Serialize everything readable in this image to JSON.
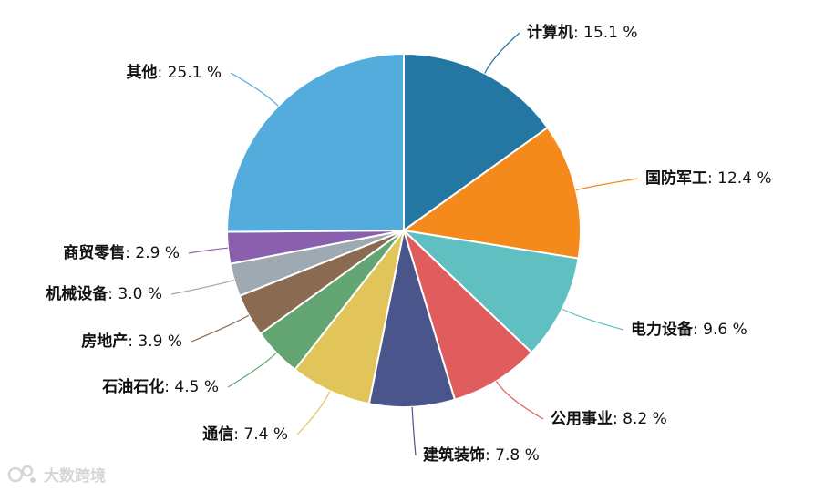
{
  "chart_data": {
    "type": "pie",
    "slices": [
      {
        "label": "计算机",
        "value": 15.1,
        "value_text": "15.1 %",
        "color": "#2476a3"
      },
      {
        "label": "国防军工",
        "value": 12.4,
        "value_text": "12.4 %",
        "color": "#f48a1b"
      },
      {
        "label": "电力设备",
        "value": 9.6,
        "value_text": "9.6 %",
        "color": "#5fbfc1"
      },
      {
        "label": "公用事业",
        "value": 8.2,
        "value_text": "8.2 %",
        "color": "#e05c5d"
      },
      {
        "label": "建筑装饰",
        "value": 7.8,
        "value_text": "7.8 %",
        "color": "#4a568b"
      },
      {
        "label": "通信",
        "value": 7.4,
        "value_text": "7.4 %",
        "color": "#e1c55a"
      },
      {
        "label": "石油石化",
        "value": 4.5,
        "value_text": "4.5 %",
        "color": "#64a574"
      },
      {
        "label": "房地产",
        "value": 3.9,
        "value_text": "3.9 %",
        "color": "#8a6b52"
      },
      {
        "label": "机械设备",
        "value": 3.0,
        "value_text": "3.0 %",
        "color": "#9fa9b1"
      },
      {
        "label": "商贸零售",
        "value": 2.9,
        "value_text": "2.9 %",
        "color": "#8a5fad"
      },
      {
        "label": "其他",
        "value": 25.1,
        "value_text": "25.1 %",
        "color": "#53acdc"
      }
    ]
  },
  "watermark": {
    "text": "大数跨境"
  }
}
